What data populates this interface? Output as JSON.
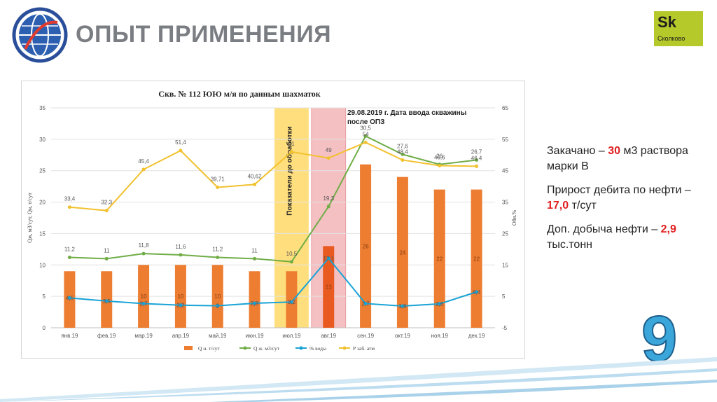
{
  "slide": {
    "title": "ОПЫТ ПРИМЕНЕНИЯ",
    "brand_logo_text": "Sk",
    "brand_logo_name": "Сколково",
    "page_number": "9"
  },
  "notes": [
    {
      "pre": "Закачано – ",
      "value": "30",
      "post": " м3 раствора марки В"
    },
    {
      "pre": "Прирост дебита по нефти – ",
      "value": "17,0",
      "post": " т/сут"
    },
    {
      "pre": "Доп. добыча нефти – ",
      "value": "2,9",
      "post": " тыс.тонн"
    }
  ],
  "colors": {
    "oil": "#ed7d31",
    "oil_highlight": "#e85a20",
    "liquid": "#70ad47",
    "water": "#1aa3d6",
    "pressure": "#f2c12e",
    "band_yellow": "#ffd966",
    "band_red": "#f4b6b8",
    "accent": "#e02020"
  },
  "chart_data": {
    "type": "bar",
    "title": "Скв. № 112 ЮЮ м/я по данным шахматок",
    "ylabel": "Qж, м3/сут, Qн, т/сут",
    "y2label": "Обв.%",
    "ylim": [
      0,
      35
    ],
    "y_ticks": [
      "0",
      "5",
      "10",
      "15",
      "20",
      "25",
      "30",
      "35"
    ],
    "y2lim": [
      -5,
      65
    ],
    "y2_ticks": [
      "-5",
      "5",
      "15",
      "25",
      "35",
      "45",
      "55",
      "65"
    ],
    "categories": [
      "янв.19",
      "фев.19",
      "мар.19",
      "апр.19",
      "май.19",
      "июн.19",
      "июл.19",
      "авг.19",
      "сен.19",
      "окт.19",
      "ноя.19",
      "дек.19"
    ],
    "series": [
      {
        "name": "Q н. т/сут",
        "type": "bar",
        "axis": "left",
        "values": [
          9,
          9,
          10,
          10,
          10,
          9,
          9,
          13,
          26,
          24,
          22,
          22
        ],
        "labels": [
          "",
          "",
          "10",
          "10",
          "10",
          "",
          "",
          "13",
          "26",
          "24",
          "22",
          "22"
        ]
      },
      {
        "name": "Q ж. м3/сут",
        "type": "line",
        "axis": "left",
        "values": [
          11.2,
          11,
          11.8,
          11.6,
          11.2,
          11,
          10.5,
          19.3,
          30.5,
          27.6,
          26,
          26.7
        ],
        "labels": [
          "11,2",
          "11",
          "11,8",
          "11,6",
          "11,2",
          "11",
          "10,5",
          "19,3",
          "30,5",
          "27,6",
          "26",
          "26,7"
        ]
      },
      {
        "name": "% воды",
        "type": "line",
        "axis": "right",
        "values": [
          4.5,
          3.5,
          2.7,
          2.2,
          2,
          2.8,
          3.2,
          17.1,
          2.7,
          1.9,
          2.6,
          6.4
        ],
        "labels": [
          "4,5",
          "3,5",
          "2,7",
          "2,2",
          "2",
          "2,8",
          "3,2",
          "17,1",
          "2,7",
          "1,9",
          "2,6",
          "6,4"
        ]
      },
      {
        "name": "Р заб. атм",
        "type": "line",
        "axis": "right",
        "values": [
          33.4,
          32.3,
          45.4,
          51.4,
          39.71,
          40.62,
          51,
          49,
          54,
          48.4,
          46.6,
          46.4
        ],
        "labels": [
          "33,4",
          "32,3",
          "45,4",
          "51,4",
          "39,71",
          "40,62",
          "51",
          "49",
          "54",
          "48,4",
          "46,6",
          "46,4"
        ]
      }
    ],
    "bands": [
      {
        "category": "июл.19",
        "label": "Показатели до обработки",
        "color": "yellow"
      },
      {
        "category": "авг.19",
        "label": "",
        "color": "red"
      }
    ],
    "annotation": "29.08.2019 г. Дата ввода скважины после ОПЗ",
    "legend_position": "bottom",
    "grid": "horizontal"
  }
}
